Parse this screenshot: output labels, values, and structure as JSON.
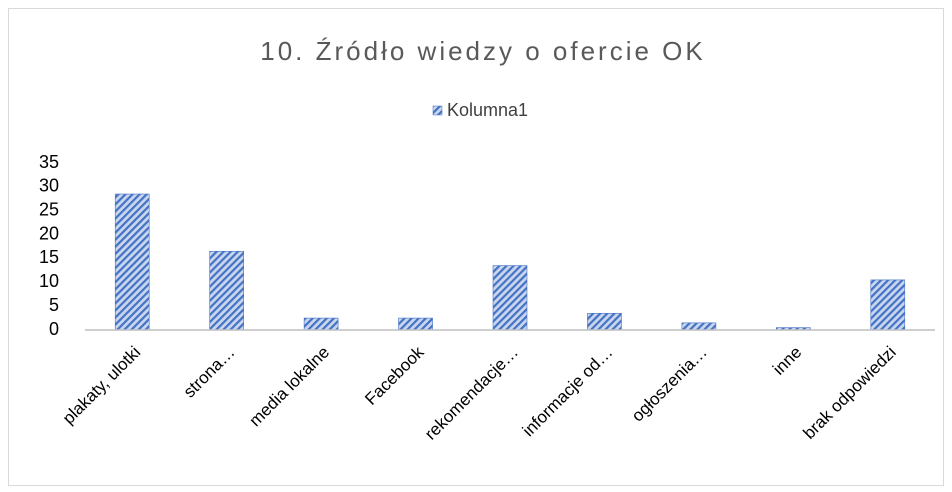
{
  "chart_data": {
    "type": "bar",
    "title": "10. Źródło wiedzy o ofercie OK",
    "categories": [
      "plakaty, ulotki",
      "strona…",
      "media lokalne",
      "Facebook",
      "rekomendacje…",
      "informacje od…",
      "ogłoszenia…",
      "inne",
      "brak odpowiedzi"
    ],
    "series": [
      {
        "name": "Kolumna1",
        "color": "#4472c4",
        "values": [
          28.5,
          16.5,
          2.5,
          2.5,
          13.5,
          3.5,
          1.5,
          0.5,
          10.5
        ]
      }
    ],
    "ylim": [
      0,
      35
    ],
    "yticks": [
      0,
      5,
      10,
      15,
      20,
      25,
      30,
      35
    ],
    "grid": false,
    "legend": "top"
  }
}
